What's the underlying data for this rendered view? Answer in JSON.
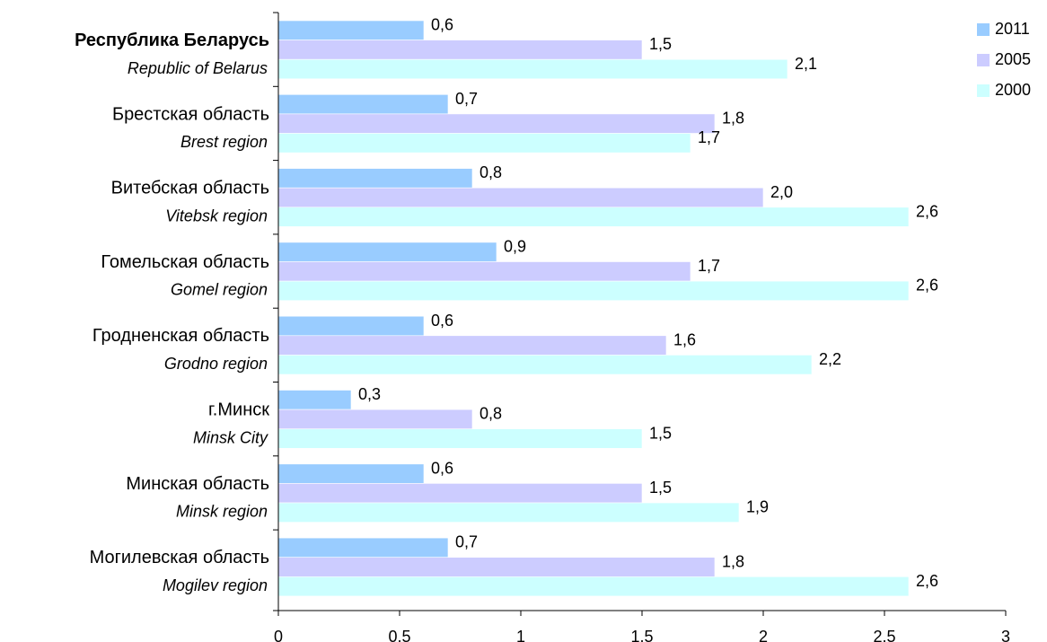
{
  "chart_data": {
    "type": "bar",
    "orientation": "horizontal",
    "categories": [
      "Республика Беларусь",
      "Брестская область",
      "Витебская область",
      "Гомельская область",
      "Гродненская область",
      "г.Минск",
      "Минская область",
      "Могилевская область"
    ],
    "categories_en": [
      "Republic of Belarus",
      "Brest region",
      "Vitebsk region",
      "Gomel region",
      "Grodno region",
      "Minsk City",
      "Minsk region",
      "Mogilev region"
    ],
    "series": [
      {
        "name": "2011",
        "color": "#99ccff",
        "values": [
          0.6,
          0.7,
          0.8,
          0.9,
          0.6,
          0.3,
          0.6,
          0.7
        ],
        "value_labels": [
          "0,6",
          "0,7",
          "0,8",
          "0,9",
          "0,6",
          "0,3",
          "0,6",
          "0,7"
        ]
      },
      {
        "name": "2005",
        "color": "#ccccff",
        "values": [
          1.5,
          1.8,
          2.0,
          1.7,
          1.6,
          0.8,
          1.5,
          1.8
        ],
        "value_labels": [
          "1,5",
          "1,8",
          "2,0",
          "1,7",
          "1,6",
          "0,8",
          "1,5",
          "1,8"
        ]
      },
      {
        "name": "2000",
        "color": "#ccffff",
        "values": [
          2.1,
          1.7,
          2.6,
          2.6,
          2.2,
          1.5,
          1.9,
          2.6
        ],
        "value_labels": [
          "2,1",
          "1,7",
          "2,6",
          "2,6",
          "2,2",
          "1,5",
          "1,9",
          "2,6"
        ]
      }
    ],
    "xlim": [
      0,
      3
    ],
    "xticks": [
      0,
      0.5,
      1,
      1.5,
      2,
      2.5,
      3
    ],
    "legend": "top-right"
  }
}
